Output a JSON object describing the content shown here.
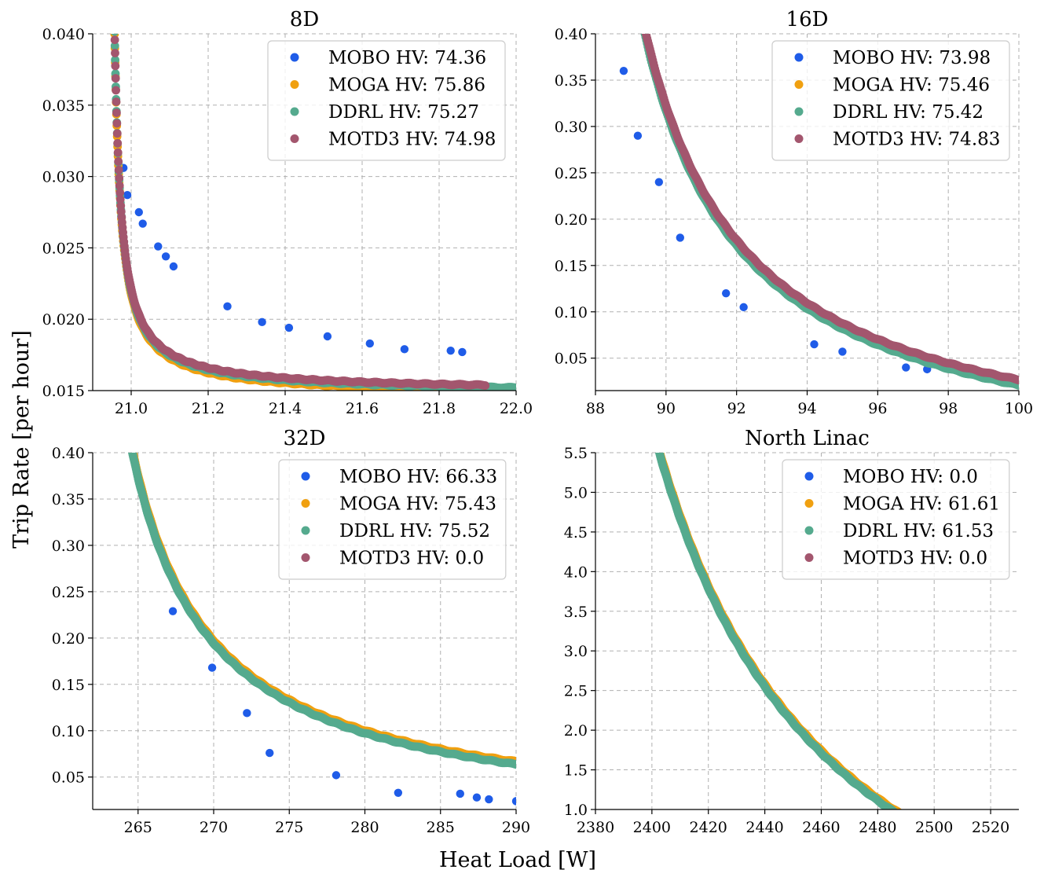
{
  "figure": {
    "xlabel": "Heat Load [W]",
    "ylabel": "Trip Rate [per hour]"
  },
  "colors": {
    "MOBO": "#1f5ce8",
    "MOGA": "#f0a010",
    "DDRL": "#55aa8e",
    "MOTD3": "#a3566e"
  },
  "chart_data": [
    {
      "type": "scatter",
      "title": "8D",
      "xlim": [
        20.9,
        22.0
      ],
      "ylim": [
        0.015,
        0.04
      ],
      "xticks": [
        "21.0",
        "21.2",
        "21.4",
        "21.6",
        "21.8",
        "22.0"
      ],
      "yticks": [
        "0.015",
        "0.020",
        "0.025",
        "0.030",
        "0.035",
        "0.040"
      ],
      "grid": true,
      "legend_position": "top-right",
      "curve": {
        "model": "a/(x-x0)+c",
        "x0": 20.94,
        "a": 0.00043,
        "c": 0.0148,
        "x_range": [
          20.955,
          22.0
        ]
      },
      "series": [
        {
          "name": "MOBO HV: 74.36",
          "key": "MOBO",
          "offset": 0.0001,
          "points": [
            [
              20.98,
              0.0306
            ],
            [
              20.99,
              0.0287
            ],
            [
              21.02,
              0.0275
            ],
            [
              21.03,
              0.0267
            ],
            [
              21.07,
              0.0251
            ],
            [
              21.09,
              0.0244
            ],
            [
              21.11,
              0.0237
            ],
            [
              21.25,
              0.0209
            ],
            [
              21.34,
              0.0198
            ],
            [
              21.41,
              0.0194
            ],
            [
              21.51,
              0.0188
            ],
            [
              21.62,
              0.0183
            ],
            [
              21.71,
              0.0179
            ],
            [
              21.83,
              0.0178
            ],
            [
              21.86,
              0.0177
            ]
          ]
        },
        {
          "name": "MOGA HV: 75.86",
          "key": "MOGA",
          "offset": -0.0002
        },
        {
          "name": "DDRL HV: 75.27",
          "key": "DDRL",
          "offset": 0.0,
          "x_range": [
            20.955,
            22.0
          ]
        },
        {
          "name": "MOTD3 HV: 74.98",
          "key": "MOTD3",
          "offset": 0.00015,
          "x_range": [
            20.955,
            21.92
          ]
        }
      ]
    },
    {
      "type": "scatter",
      "title": "16D",
      "xlim": [
        88,
        100
      ],
      "ylim": [
        0.015,
        0.4
      ],
      "xticks": [
        "88",
        "90",
        "92",
        "94",
        "96",
        "98",
        "100"
      ],
      "yticks": [
        "0.05",
        "0.10",
        "0.15",
        "0.20",
        "0.25",
        "0.30",
        "0.35",
        "0.40"
      ],
      "grid": true,
      "legend_position": "top-right",
      "curve": {
        "model": "a/(x-x0)+c",
        "x0": 86.5,
        "a": 1.4,
        "c": -0.08,
        "x_range": [
          88.3,
          100
        ]
      },
      "series": [
        {
          "name": "MOBO HV: 73.98",
          "key": "MOBO",
          "offset": 0.004,
          "points": [
            [
              88.8,
              0.36
            ],
            [
              89.2,
              0.29
            ],
            [
              89.8,
              0.24
            ],
            [
              90.4,
              0.18
            ],
            [
              91.7,
              0.12
            ],
            [
              92.2,
              0.105
            ],
            [
              94.2,
              0.065
            ],
            [
              95.0,
              0.057
            ],
            [
              96.8,
              0.04
            ],
            [
              97.4,
              0.038
            ],
            [
              98.8,
              0.031
            ],
            [
              99.3,
              0.03
            ]
          ]
        },
        {
          "name": "MOGA HV: 75.46",
          "key": "MOGA",
          "offset": 0.0
        },
        {
          "name": "DDRL HV: 75.42",
          "key": "DDRL",
          "offset": -0.003
        },
        {
          "name": "MOTD3 HV: 74.83",
          "key": "MOTD3",
          "offset": 0.003,
          "x_range": [
            88.5,
            100
          ]
        }
      ]
    },
    {
      "type": "scatter",
      "title": "32D",
      "xlim": [
        262,
        290
      ],
      "ylim": [
        0.015,
        0.4
      ],
      "xticks": [
        "265",
        "270",
        "275",
        "280",
        "285",
        "290"
      ],
      "yticks": [
        "0.05",
        "0.10",
        "0.15",
        "0.20",
        "0.25",
        "0.30",
        "0.35",
        "0.40"
      ],
      "grid": true,
      "legend_position": "top-right",
      "curve": {
        "model": "a/(x-x0)+c",
        "x0": 259.4,
        "a": 2.12,
        "c": -0.0056,
        "x_range": [
          263.9,
          290
        ]
      },
      "series": [
        {
          "name": "MOBO HV: 66.33",
          "key": "MOBO",
          "offset": 0.0,
          "points": [
            [
              265.6,
              0.338
            ],
            [
              267.3,
              0.229
            ],
            [
              269.9,
              0.168
            ],
            [
              272.2,
              0.119
            ],
            [
              273.7,
              0.076
            ],
            [
              278.1,
              0.052
            ],
            [
              282.2,
              0.033
            ],
            [
              286.3,
              0.032
            ],
            [
              287.4,
              0.028
            ],
            [
              288.2,
              0.026
            ],
            [
              290.0,
              0.024
            ]
          ]
        },
        {
          "name": "MOGA HV: 75.43",
          "key": "MOGA",
          "offset": 0.003
        },
        {
          "name": "DDRL HV: 75.52",
          "key": "DDRL",
          "offset": 0.0,
          "x_range": [
            264.1,
            290
          ]
        },
        {
          "name": "MOTD3 HV: 0.0",
          "key": "MOTD3",
          "offset": 0.0,
          "points": []
        }
      ]
    },
    {
      "type": "scatter",
      "title": "North Linac",
      "xlim": [
        2380,
        2530
      ],
      "ylim": [
        1.0,
        5.5
      ],
      "xticks": [
        "2380",
        "2400",
        "2420",
        "2440",
        "2460",
        "2480",
        "2500",
        "2520"
      ],
      "yticks": [
        "1.0",
        "1.5",
        "2.0",
        "2.5",
        "3.0",
        "3.5",
        "4.0",
        "4.5",
        "5.0",
        "5.5"
      ],
      "grid": true,
      "legend_position": "top-right",
      "curve": {
        "model": "a/(x-x0)+c",
        "x0": 2338,
        "a": 520,
        "c": -2.55,
        "x_range": [
          2398,
          2530
        ]
      },
      "series": [
        {
          "name": "MOBO HV: 0.0",
          "key": "MOBO",
          "offset": 0.0,
          "points": []
        },
        {
          "name": "MOGA HV: 61.61",
          "key": "MOGA",
          "offset": 0.03
        },
        {
          "name": "DDRL HV: 61.53",
          "key": "DDRL",
          "offset": 0.0,
          "x_range": [
            2399,
            2527
          ]
        },
        {
          "name": "MOTD3 HV: 0.0",
          "key": "MOTD3",
          "offset": 0.0,
          "points": []
        }
      ]
    }
  ]
}
